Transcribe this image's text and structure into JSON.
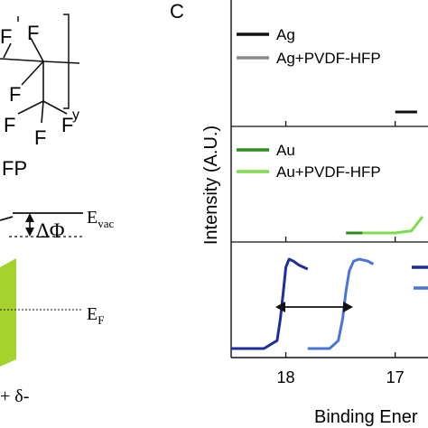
{
  "panel_label": "C",
  "molecule": {
    "atoms": [
      "F",
      "F",
      "F",
      "F",
      "F",
      "F",
      "F"
    ],
    "subscript": "y",
    "name_fragment": "FP"
  },
  "energy_diagram": {
    "vac_level": "E",
    "vac_sub": "vac",
    "fermi_level": "E",
    "fermi_sub": "F",
    "work_function_change": "ΔΦ",
    "dipole": "+ δ-"
  },
  "colors": {
    "ag": "#111111",
    "ag_pvdf": "#8a8a8a",
    "au": "#2e8b1f",
    "au_pvdf": "#7ddc4a",
    "blue_dark": "#1f2d9e",
    "blue_light": "#4a74d6",
    "green_block": "#a6d22e"
  },
  "chart_data": {
    "type": "line",
    "xlabel": "Binding Ener",
    "ylabel": "Intensity (A.U.)",
    "x_ticks": [
      "18",
      "17"
    ],
    "x_tick_values": [
      18,
      17
    ],
    "xlim": [
      18.5,
      16.7
    ],
    "panels": [
      {
        "legend": [
          "Ag",
          "Ag+PVDF-HFP"
        ],
        "series": [
          {
            "name": "Ag",
            "x": [
              17.0,
              16.8
            ],
            "y": [
              0.05,
              0.05
            ]
          },
          {
            "name": "Ag+PVDF-HFP",
            "x": [],
            "y": []
          }
        ]
      },
      {
        "legend": [
          "Au",
          "Au+PVDF-HFP"
        ],
        "series": [
          {
            "name": "Au",
            "x": [
              17.45,
              17.3,
              17.0
            ],
            "y": [
              0.0,
              0.0,
              0.0
            ]
          },
          {
            "name": "Au+PVDF-HFP",
            "x": [
              17.3,
              17.0,
              16.85,
              16.75
            ],
            "y": [
              0.0,
              0.0,
              0.02,
              0.15
            ]
          }
        ]
      },
      {
        "legend": [],
        "series": [
          {
            "name": "",
            "x": [
              18.5,
              18.2,
              18.08,
              18.05,
              18.02,
              18.0,
              17.97,
              17.93,
              17.88,
              17.8
            ],
            "y": [
              0.0,
              0.0,
              0.08,
              0.3,
              0.6,
              0.82,
              0.9,
              0.88,
              0.84,
              0.8
            ]
          },
          {
            "name": "",
            "x": [
              17.8,
              17.6,
              17.52,
              17.48,
              17.45,
              17.42,
              17.38,
              17.33,
              17.25,
              17.2
            ],
            "y": [
              0.0,
              0.0,
              0.08,
              0.3,
              0.58,
              0.78,
              0.88,
              0.9,
              0.88,
              0.85
            ]
          }
        ],
        "annotations": [
          {
            "type": "double-arrow",
            "from": 18.0,
            "to": 17.55
          }
        ]
      }
    ]
  }
}
